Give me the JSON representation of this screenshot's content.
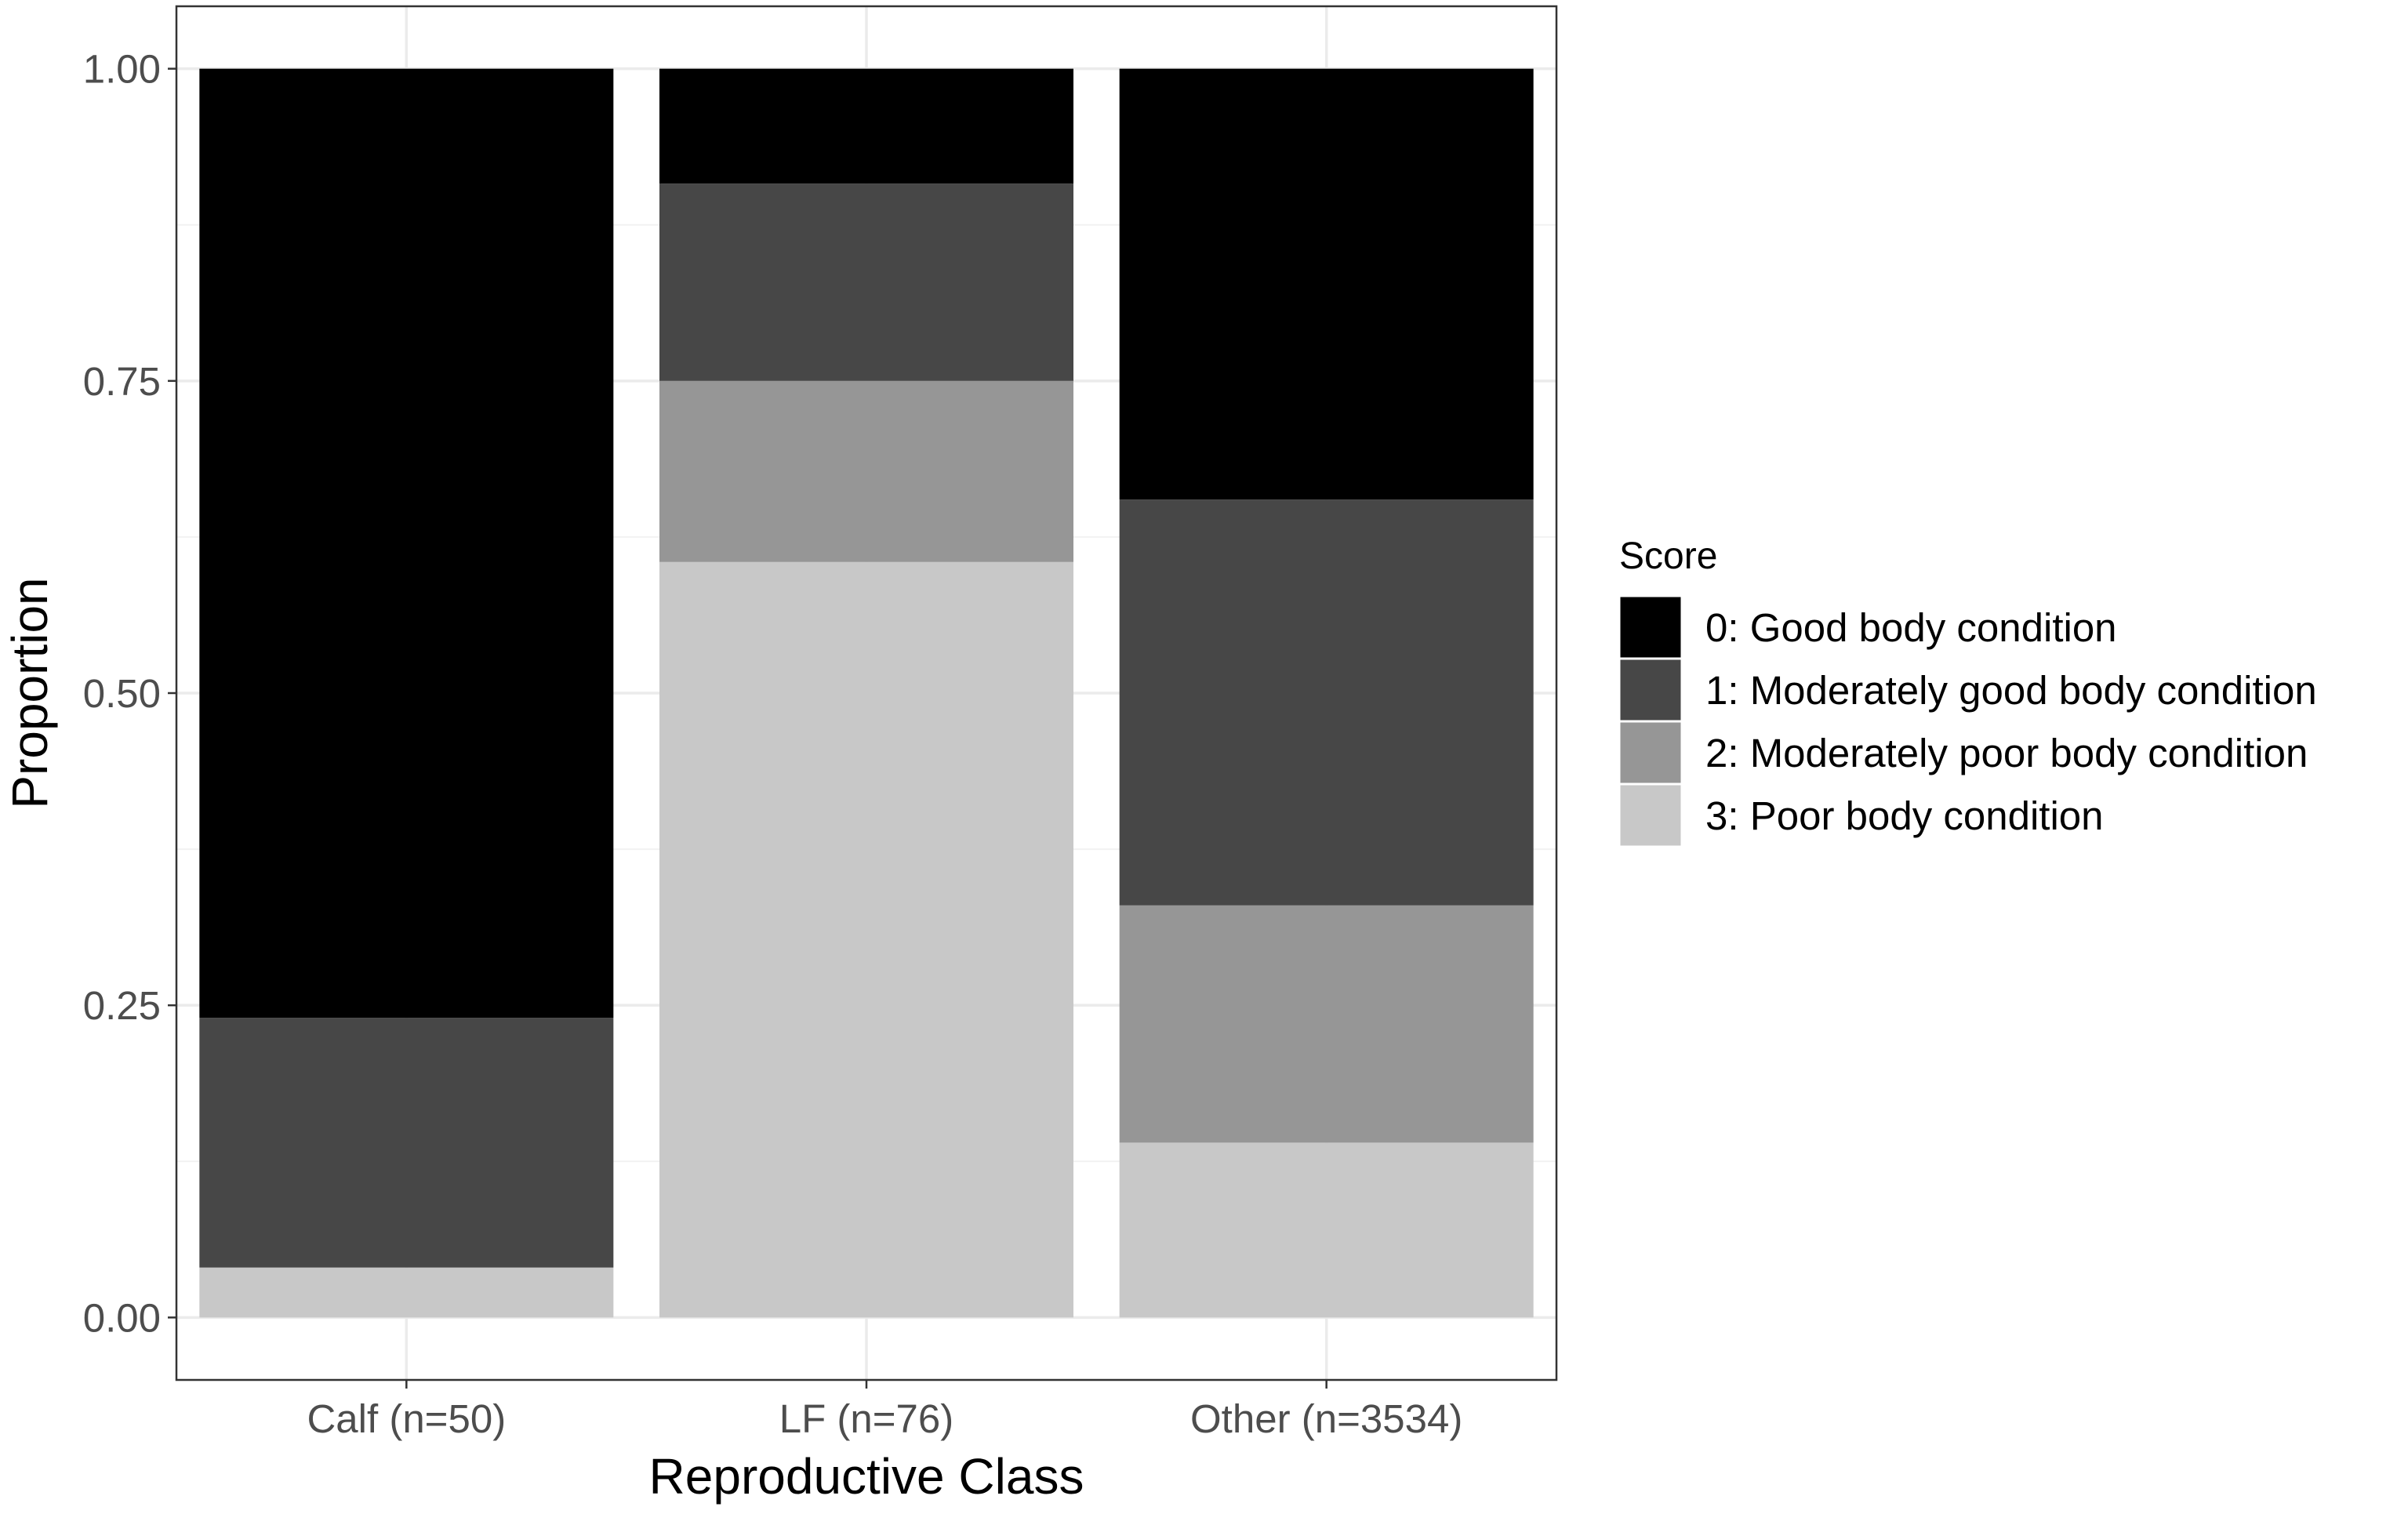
{
  "chart_data": {
    "type": "bar",
    "stacked": true,
    "categories": [
      "Calf (n=50)",
      "LF (n=76)",
      "Other (n=3534)"
    ],
    "series": [
      {
        "name": "3: Poor body condition",
        "color": "#c8c8c8",
        "values": [
          0.04,
          0.605,
          0.14
        ]
      },
      {
        "name": "2: Moderately poor body condition",
        "color": "#969696",
        "values": [
          0.0,
          0.145,
          0.19
        ]
      },
      {
        "name": "1: Moderately good body condition",
        "color": "#474747",
        "values": [
          0.2,
          0.158,
          0.325
        ]
      },
      {
        "name": "0: Good body condition",
        "color": "#000000",
        "values": [
          0.76,
          0.092,
          0.345
        ]
      }
    ],
    "yticks": [
      "0.00",
      "0.25",
      "0.50",
      "0.75",
      "1.00"
    ],
    "ylim": [
      -0.05,
      1.05
    ],
    "xlabel": "Reproductive Class",
    "ylabel": "Proportion",
    "legend_title": "Score",
    "legend_position": "right",
    "legend_order": [
      "0: Good body condition",
      "1: Moderately good body condition",
      "2: Moderately poor body condition",
      "3: Poor body condition"
    ],
    "legend_colors": [
      "#000000",
      "#474747",
      "#969696",
      "#c8c8c8"
    ],
    "grid": true
  }
}
